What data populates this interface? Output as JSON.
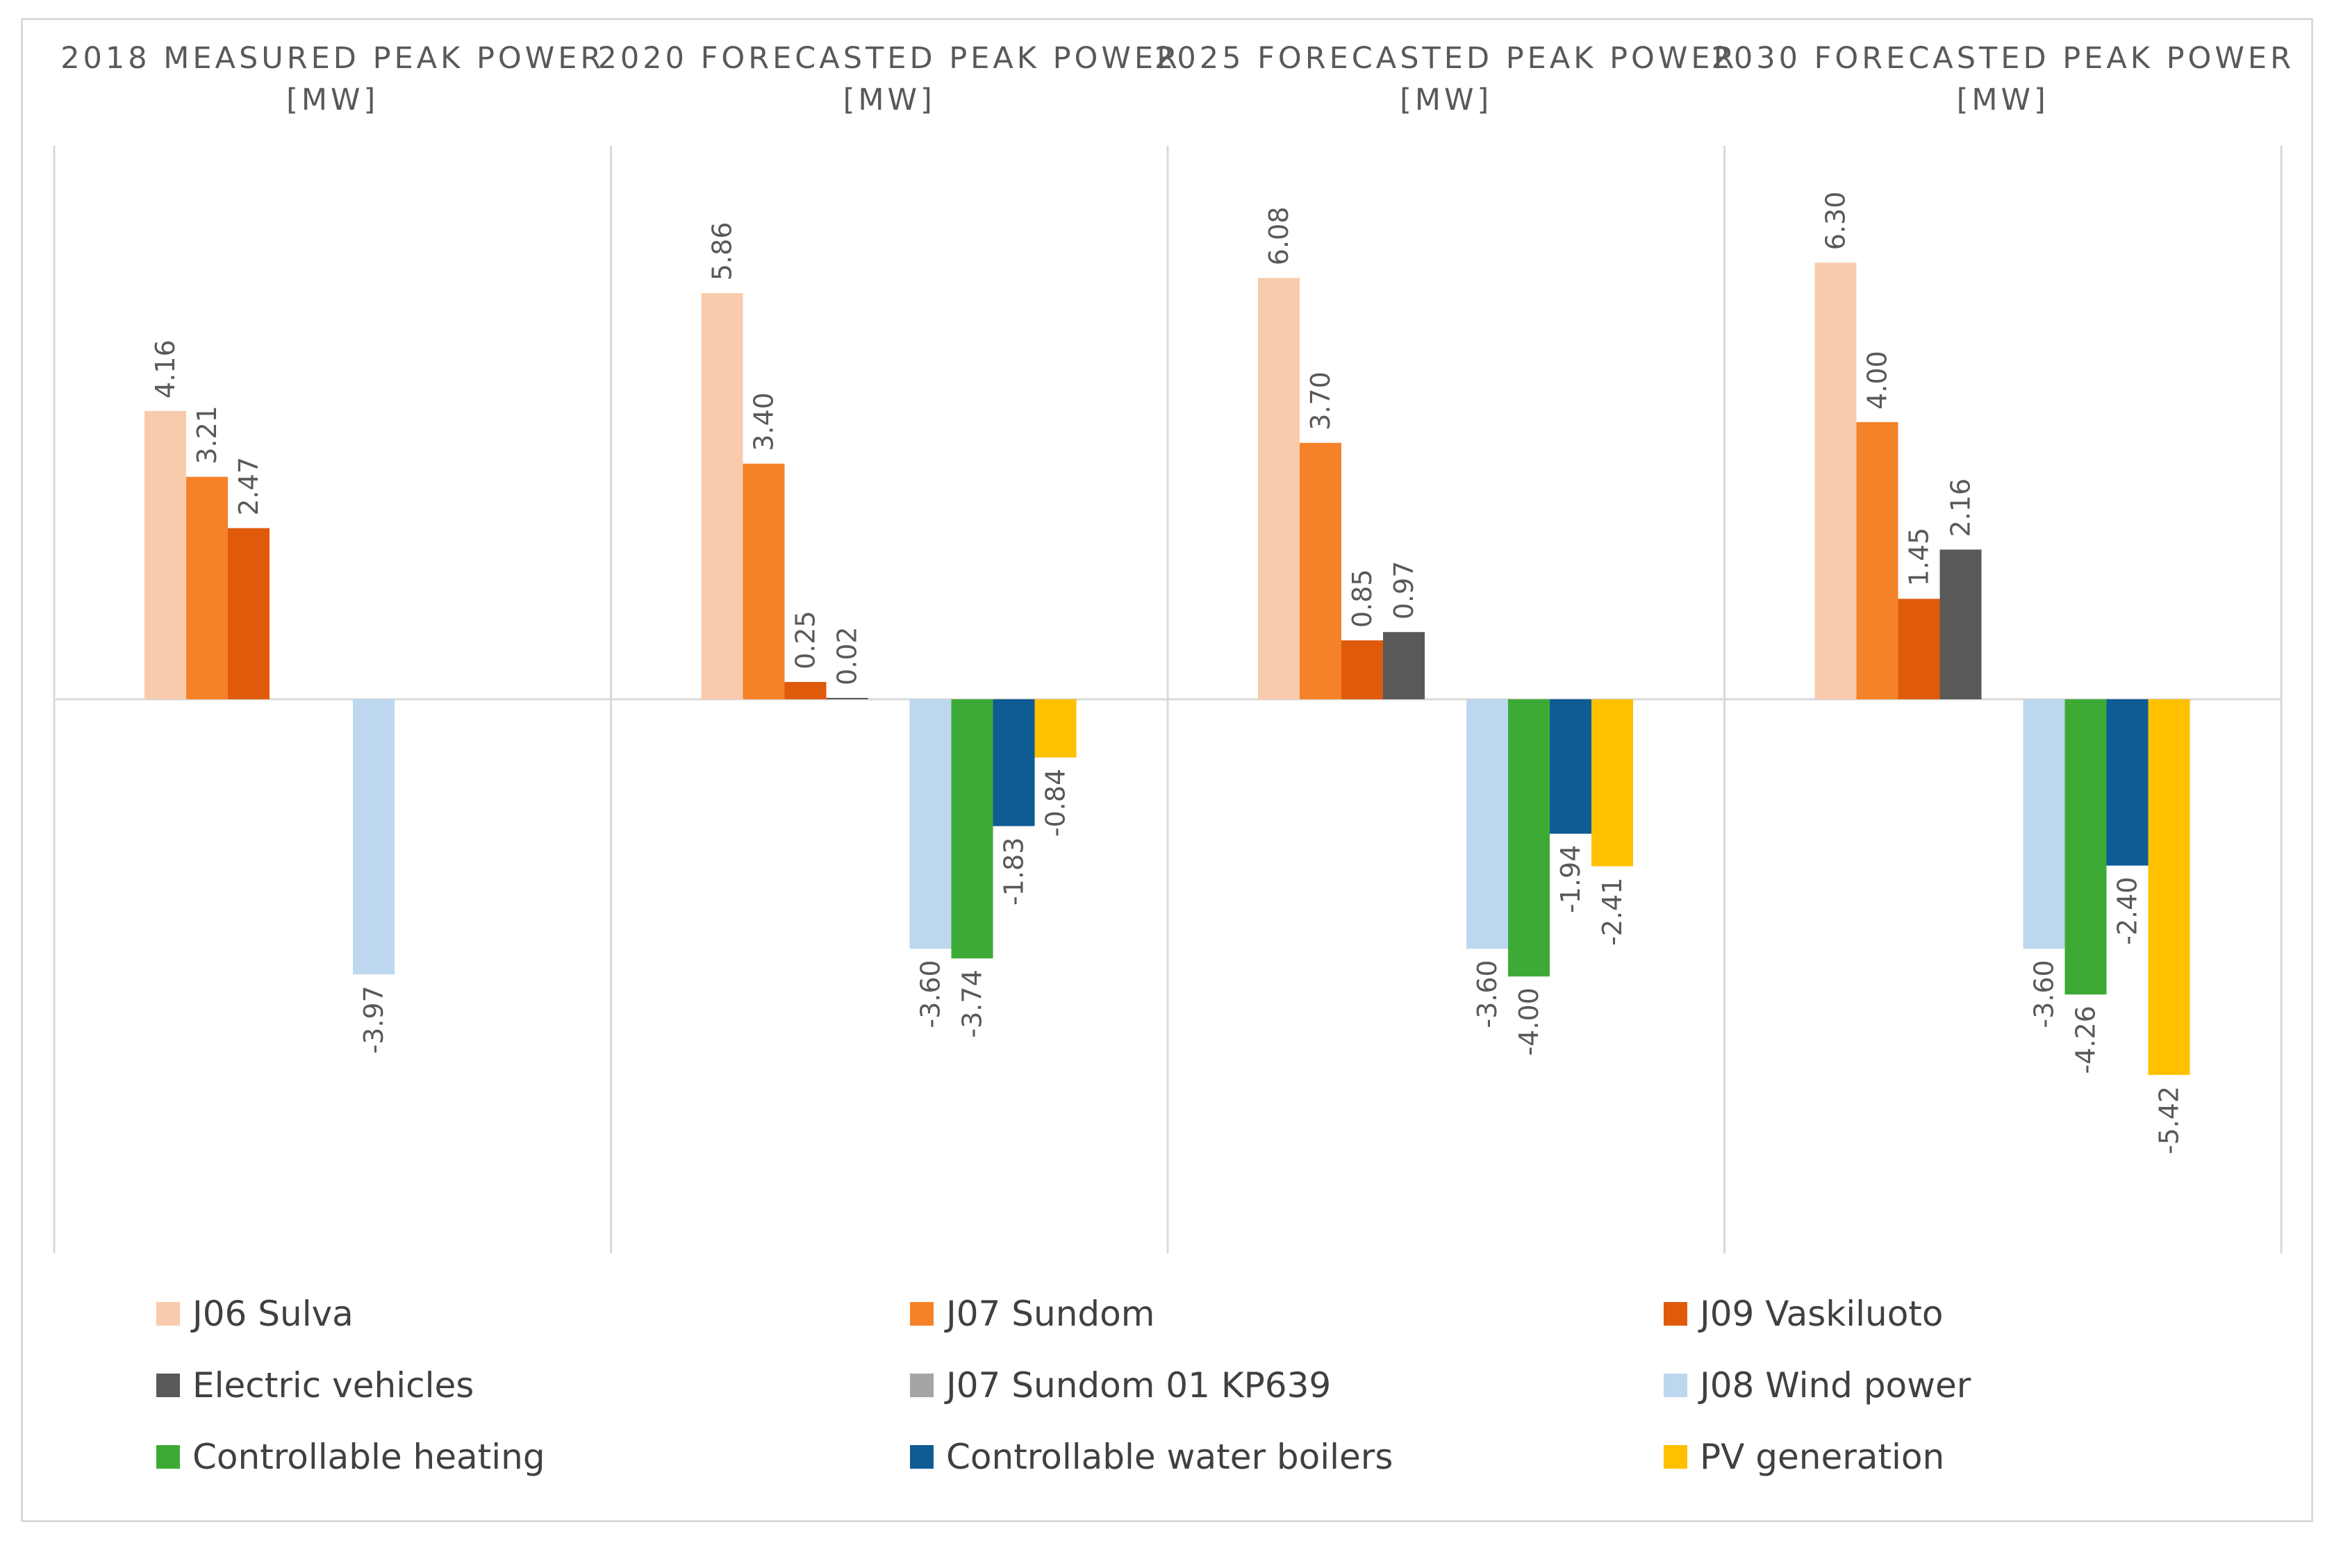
{
  "chart_data": {
    "type": "bar",
    "panels": [
      "2018 MEASURED PEAK POWER [MW]",
      "2020 FORECASTED PEAK POWER [MW]",
      "2025 FORECASTED PEAK POWER [MW]",
      "2030 FORECASTED PEAK POWER [MW]"
    ],
    "ylim": [
      -8.0,
      8.0
    ],
    "grid": false,
    "legend_position": "bottom",
    "series": [
      {
        "name": "J06 Sulva",
        "color": "#f8cbad",
        "values": [
          4.16,
          5.86,
          6.08,
          6.3
        ]
      },
      {
        "name": "J07 Sundom",
        "color": "#f58228",
        "values": [
          3.21,
          3.4,
          3.7,
          4.0
        ]
      },
      {
        "name": "J09 Vaskiluoto",
        "color": "#e05a0c",
        "values": [
          2.47,
          0.25,
          0.85,
          1.45
        ]
      },
      {
        "name": "Electric vehicles",
        "color": "#595959",
        "values": [
          null,
          0.02,
          0.97,
          2.16
        ]
      },
      {
        "name": "J07 Sundom 01 KP639",
        "color": "#a5a5a5",
        "values": [
          null,
          null,
          null,
          null
        ]
      },
      {
        "name": "J08 Wind power",
        "color": "#bdd7ee",
        "values": [
          -3.97,
          -3.6,
          -3.6,
          -3.6
        ]
      },
      {
        "name": "Controllable heating",
        "color": "#3daa36",
        "values": [
          null,
          -3.74,
          -4.0,
          -4.26
        ]
      },
      {
        "name": "Controllable water boilers",
        "color": "#0f5c94",
        "values": [
          null,
          -1.83,
          -1.94,
          -2.4
        ]
      },
      {
        "name": "PV generation",
        "color": "#ffc000",
        "values": [
          null,
          -0.84,
          -2.41,
          -5.42
        ]
      }
    ]
  }
}
